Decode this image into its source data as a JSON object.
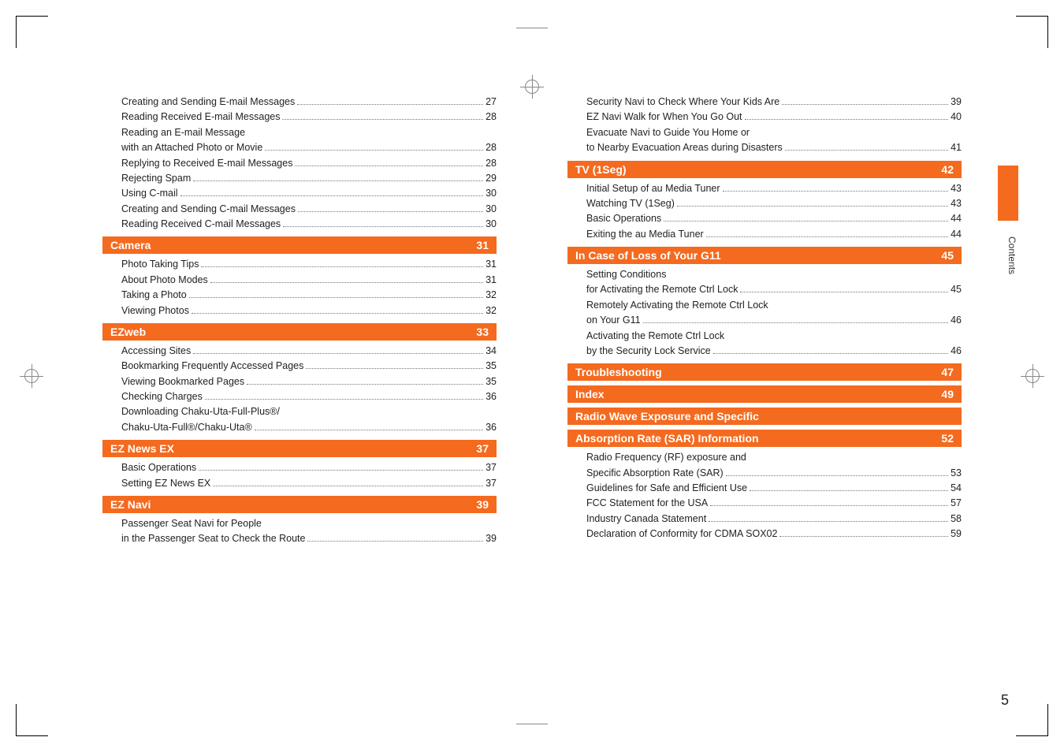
{
  "page_number": "5",
  "side_label": "Contents",
  "colors": {
    "accent": "#f46a1f",
    "text": "#222222",
    "dots": "#777777"
  },
  "left_column": [
    {
      "type": "item",
      "label": "Creating and Sending E-mail Messages",
      "page": "27"
    },
    {
      "type": "item",
      "label": "Reading Received E-mail Messages",
      "page": "28"
    },
    {
      "type": "item",
      "label": "Reading an E-mail Message",
      "page": ""
    },
    {
      "type": "item",
      "label": "with an Attached Photo or Movie",
      "page": "28"
    },
    {
      "type": "item",
      "label": "Replying to Received E-mail Messages",
      "page": "28"
    },
    {
      "type": "item",
      "label": "Rejecting Spam",
      "page": "29"
    },
    {
      "type": "item",
      "label": "Using C-mail",
      "page": "30"
    },
    {
      "type": "item",
      "label": "Creating and Sending C-mail Messages",
      "page": "30"
    },
    {
      "type": "item",
      "label": "Reading Received C-mail Messages",
      "page": "30"
    },
    {
      "type": "section",
      "label": "Camera",
      "page": "31"
    },
    {
      "type": "item",
      "label": "Photo Taking Tips",
      "page": "31"
    },
    {
      "type": "item",
      "label": "About Photo Modes",
      "page": "31"
    },
    {
      "type": "item",
      "label": "Taking a Photo",
      "page": "32"
    },
    {
      "type": "item",
      "label": "Viewing Photos",
      "page": "32"
    },
    {
      "type": "section",
      "label": "EZweb",
      "page": "33"
    },
    {
      "type": "item",
      "label": "Accessing Sites",
      "page": "34"
    },
    {
      "type": "item",
      "label": "Bookmarking Frequently Accessed Pages",
      "page": "35"
    },
    {
      "type": "item",
      "label": "Viewing Bookmarked Pages",
      "page": "35"
    },
    {
      "type": "item",
      "label": "Checking Charges",
      "page": "36"
    },
    {
      "type": "item",
      "label": "Downloading Chaku-Uta-Full-Plus®/",
      "page": ""
    },
    {
      "type": "item",
      "label": "Chaku-Uta-Full®/Chaku-Uta®",
      "page": "36"
    },
    {
      "type": "section",
      "label": "EZ News EX",
      "page": "37"
    },
    {
      "type": "item",
      "label": "Basic Operations",
      "page": "37"
    },
    {
      "type": "item",
      "label": "Setting EZ News EX",
      "page": "37"
    },
    {
      "type": "section",
      "label": "EZ Navi",
      "page": "39"
    },
    {
      "type": "item",
      "label": "Passenger Seat Navi for People",
      "page": ""
    },
    {
      "type": "item",
      "label": "in the Passenger Seat to Check the Route",
      "page": "39"
    }
  ],
  "right_column": [
    {
      "type": "item",
      "label": "Security Navi to Check Where Your Kids Are",
      "page": "39"
    },
    {
      "type": "item",
      "label": "EZ Navi Walk for When You Go Out",
      "page": "40"
    },
    {
      "type": "item",
      "label": "Evacuate Navi to Guide You Home or",
      "page": ""
    },
    {
      "type": "item",
      "label": "to Nearby Evacuation Areas during Disasters",
      "page": "41"
    },
    {
      "type": "section",
      "label": "TV (1Seg)",
      "page": "42"
    },
    {
      "type": "item",
      "label": "Initial Setup of au Media Tuner",
      "page": "43"
    },
    {
      "type": "item",
      "label": "Watching TV (1Seg)",
      "page": "43"
    },
    {
      "type": "item",
      "label": "Basic Operations",
      "page": "44"
    },
    {
      "type": "item",
      "label": "Exiting the au Media Tuner",
      "page": "44"
    },
    {
      "type": "section",
      "label": "In Case of Loss of Your G11",
      "page": "45"
    },
    {
      "type": "item",
      "label": "Setting Conditions",
      "page": ""
    },
    {
      "type": "item",
      "label": "for Activating the Remote Ctrl Lock",
      "page": "45"
    },
    {
      "type": "item",
      "label": "Remotely Activating the Remote Ctrl Lock",
      "page": ""
    },
    {
      "type": "item",
      "label": "on Your G11",
      "page": "46"
    },
    {
      "type": "item",
      "label": "Activating the Remote Ctrl Lock",
      "page": ""
    },
    {
      "type": "item",
      "label": "by the Security Lock Service",
      "page": "46"
    },
    {
      "type": "section",
      "label": "Troubleshooting",
      "page": "47"
    },
    {
      "type": "section",
      "label": "Index",
      "page": "49"
    },
    {
      "type": "section",
      "label": "Radio Wave Exposure and Specific",
      "page": ""
    },
    {
      "type": "section",
      "label": "Absorption Rate (SAR) Information",
      "page": "52"
    },
    {
      "type": "item",
      "label": "Radio Frequency (RF) exposure and",
      "page": ""
    },
    {
      "type": "item",
      "label": "Specific Absorption Rate (SAR)",
      "page": "53"
    },
    {
      "type": "item",
      "label": "Guidelines for Safe and Efficient Use",
      "page": "54"
    },
    {
      "type": "item",
      "label": "FCC Statement for the USA",
      "page": "57"
    },
    {
      "type": "item",
      "label": "Industry Canada Statement",
      "page": "58"
    },
    {
      "type": "item",
      "label": "Declaration of Conformity for CDMA SOX02",
      "page": "59"
    }
  ]
}
